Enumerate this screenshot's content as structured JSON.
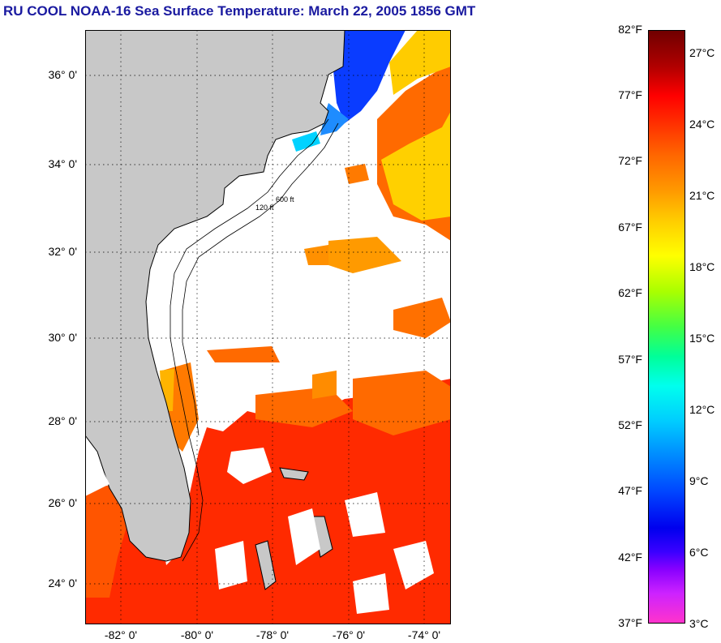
{
  "title": "RU COOL  NOAA-16  Sea Surface Temperature:  March 22, 2005 1856 GMT",
  "lat_labels": [
    "36° 0'",
    "34° 0'",
    "32° 0'",
    "30° 0'",
    "28° 0'",
    "26° 0'",
    "24° 0'"
  ],
  "lon_labels": [
    "-82° 0'",
    "-80° 0'",
    "-78° 0'",
    "-76° 0'",
    "-74° 0'"
  ],
  "fahrenheit_labels": [
    "82°F",
    "77°F",
    "72°F",
    "67°F",
    "62°F",
    "57°F",
    "52°F",
    "47°F",
    "42°F",
    "37°F"
  ],
  "celsius_labels": [
    "27°C",
    "24°C",
    "21°C",
    "18°C",
    "15°C",
    "12°C",
    "9°C",
    "6°C",
    "3°C"
  ],
  "contour_labels": [
    "120 ft",
    "600 ft"
  ],
  "colors": {
    "title": "#1a1aa0",
    "land": "#c8c8c8",
    "cloud": "#ffffff",
    "warm_water": "#ff2a00",
    "gulfstream": "#ff6a00",
    "cold_water": "#0a3cff"
  }
}
